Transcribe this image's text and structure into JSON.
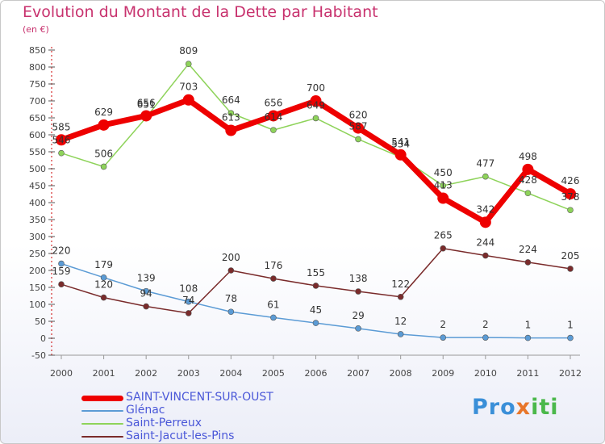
{
  "title": "Evolution du Montant de la Dette par Habitant",
  "subtitle": "(en €)",
  "logo_text": "Proxiti",
  "chart_data": {
    "type": "line",
    "x": [
      "2000",
      "2001",
      "2002",
      "2003",
      "2004",
      "2005",
      "2006",
      "2007",
      "2008",
      "2009",
      "2010",
      "2011",
      "2012"
    ],
    "ylim": [
      -50,
      850
    ],
    "yticks": [
      -50,
      0,
      50,
      100,
      150,
      200,
      250,
      300,
      350,
      400,
      450,
      500,
      550,
      600,
      650,
      700,
      750,
      800,
      850
    ],
    "grid": false,
    "legend_position": "bottom-left",
    "series": [
      {
        "name": "SAINT-VINCENT-SUR-OUST",
        "color": "#ee0000",
        "values": [
          585,
          629,
          656,
          703,
          613,
          656,
          700,
          620,
          541,
          413,
          342,
          498,
          426
        ]
      },
      {
        "name": "Glénac",
        "color": "#5b9bd5",
        "values": [
          220,
          179,
          139,
          108,
          78,
          61,
          45,
          29,
          12,
          2,
          2,
          1,
          1
        ]
      },
      {
        "name": "Saint-Perreux",
        "color": "#8ed35a",
        "values": [
          546,
          506,
          651,
          809,
          664,
          614,
          649,
          587,
          534,
          450,
          477,
          428,
          378
        ]
      },
      {
        "name": "Saint-Jacut-les-Pins",
        "color": "#7a2b2b",
        "values": [
          159,
          120,
          94,
          74,
          200,
          176,
          155,
          138,
          122,
          265,
          244,
          224,
          205
        ]
      }
    ]
  }
}
